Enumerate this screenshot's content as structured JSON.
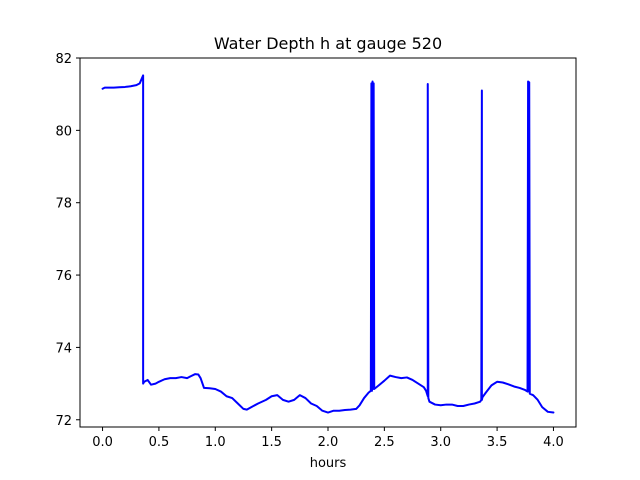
{
  "chart_data": {
    "type": "line",
    "title": "Water Depth h at gauge 520",
    "xlabel": "hours",
    "ylabel": "",
    "xlim": [
      -0.2,
      4.2
    ],
    "ylim": [
      71.8,
      82.0
    ],
    "x_ticks": [
      0.0,
      0.5,
      1.0,
      1.5,
      2.0,
      2.5,
      3.0,
      3.5,
      4.0
    ],
    "x_tick_labels": [
      "0.0",
      "0.5",
      "1.0",
      "1.5",
      "2.0",
      "2.5",
      "3.0",
      "3.5",
      "4.0"
    ],
    "y_ticks": [
      72,
      74,
      76,
      78,
      80,
      82
    ],
    "y_tick_labels": [
      "72",
      "74",
      "76",
      "78",
      "80",
      "82"
    ],
    "grid": false,
    "series": [
      {
        "color": "#0000ff",
        "x": [
          0.0,
          0.02,
          0.05,
          0.1,
          0.15,
          0.2,
          0.25,
          0.3,
          0.33,
          0.36,
          0.36,
          0.37,
          0.4,
          0.43,
          0.47,
          0.5,
          0.55,
          0.6,
          0.65,
          0.7,
          0.75,
          0.78,
          0.82,
          0.85,
          0.87,
          0.9,
          0.95,
          1.0,
          1.05,
          1.1,
          1.15,
          1.2,
          1.25,
          1.28,
          1.32,
          1.38,
          1.45,
          1.5,
          1.55,
          1.6,
          1.65,
          1.7,
          1.75,
          1.8,
          1.85,
          1.9,
          1.95,
          2.0,
          2.05,
          2.1,
          2.15,
          2.2,
          2.25,
          2.28,
          2.32,
          2.36,
          2.38,
          2.385,
          2.39,
          2.395,
          2.4,
          2.405,
          2.41,
          2.45,
          2.5,
          2.55,
          2.6,
          2.65,
          2.7,
          2.75,
          2.8,
          2.85,
          2.87,
          2.885,
          2.885,
          2.89,
          2.9,
          2.95,
          3.0,
          3.05,
          3.1,
          3.15,
          3.2,
          3.25,
          3.3,
          3.35,
          3.36,
          3.365,
          3.365,
          3.37,
          3.4,
          3.45,
          3.5,
          3.55,
          3.6,
          3.65,
          3.7,
          3.75,
          3.77,
          3.775,
          3.78,
          3.785,
          3.79,
          3.82,
          3.86,
          3.9,
          3.95,
          4.0
        ],
        "y": [
          81.15,
          81.18,
          81.18,
          81.18,
          81.19,
          81.2,
          81.22,
          81.25,
          81.3,
          81.52,
          73.0,
          73.05,
          73.1,
          72.97,
          73.0,
          73.05,
          73.12,
          73.15,
          73.15,
          73.18,
          73.15,
          73.2,
          73.26,
          73.25,
          73.15,
          72.88,
          72.87,
          72.85,
          72.78,
          72.65,
          72.6,
          72.45,
          72.3,
          72.28,
          72.35,
          72.45,
          72.55,
          72.65,
          72.68,
          72.55,
          72.5,
          72.55,
          72.68,
          72.6,
          72.45,
          72.38,
          72.25,
          72.2,
          72.25,
          72.25,
          72.27,
          72.28,
          72.3,
          72.4,
          72.6,
          72.75,
          72.8,
          81.3,
          72.8,
          81.35,
          72.85,
          81.3,
          72.85,
          72.95,
          73.08,
          73.22,
          73.18,
          73.15,
          73.17,
          73.1,
          73.0,
          72.9,
          72.8,
          72.65,
          81.28,
          72.6,
          72.5,
          72.42,
          72.4,
          72.42,
          72.42,
          72.38,
          72.38,
          72.42,
          72.45,
          72.5,
          72.55,
          81.1,
          72.55,
          72.62,
          72.75,
          72.95,
          73.05,
          73.03,
          72.98,
          72.92,
          72.88,
          72.82,
          72.78,
          81.35,
          72.78,
          81.33,
          72.72,
          72.68,
          72.55,
          72.35,
          72.22,
          72.2
        ]
      }
    ]
  }
}
